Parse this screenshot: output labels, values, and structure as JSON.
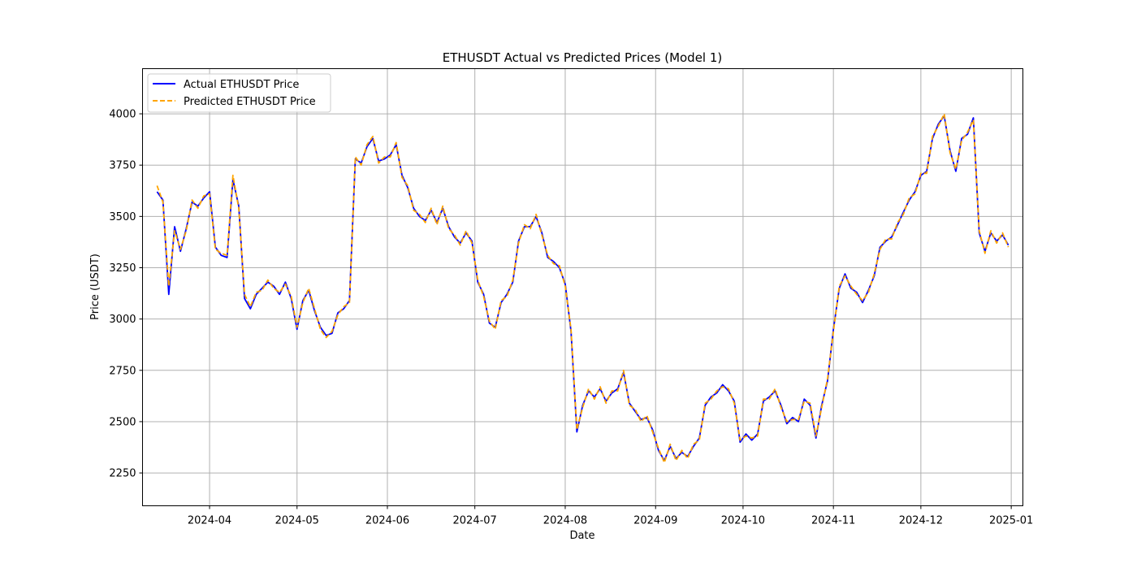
{
  "chart_data": {
    "type": "line",
    "title": "ETHUSDT Actual vs Predicted Prices (Model 1)",
    "xlabel": "Date",
    "ylabel": "Price (USDT)",
    "grid": true,
    "legend_position": "top-left",
    "xlim": [
      "2024-03-09",
      "2025-01-05"
    ],
    "ylim": [
      2090,
      4220
    ],
    "x_ticks": [
      "2024-04-01",
      "2024-05-01",
      "2024-06-01",
      "2024-07-01",
      "2024-08-01",
      "2024-09-01",
      "2024-10-01",
      "2024-11-01",
      "2024-12-01",
      "2025-01-01"
    ],
    "x_tick_labels": [
      "2024-04",
      "2024-05",
      "2024-06",
      "2024-07",
      "2024-08",
      "2024-09",
      "2024-10",
      "2024-11",
      "2024-12",
      "2025-01"
    ],
    "y_ticks": [
      2250,
      2500,
      2750,
      3000,
      3250,
      3500,
      3750,
      4000
    ],
    "y_tick_labels": [
      "2250",
      "2500",
      "2750",
      "3000",
      "3250",
      "3500",
      "3750",
      "4000"
    ],
    "series": [
      {
        "name": "Actual ETHUSDT Price",
        "color": "#0000ff",
        "style": "solid",
        "x": [
          "2024-03-14",
          "2024-03-16",
          "2024-03-18",
          "2024-03-20",
          "2024-03-22",
          "2024-03-24",
          "2024-03-26",
          "2024-03-28",
          "2024-03-30",
          "2024-04-01",
          "2024-04-03",
          "2024-04-05",
          "2024-04-07",
          "2024-04-09",
          "2024-04-11",
          "2024-04-13",
          "2024-04-15",
          "2024-04-17",
          "2024-04-19",
          "2024-04-21",
          "2024-04-23",
          "2024-04-25",
          "2024-04-27",
          "2024-04-29",
          "2024-05-01",
          "2024-05-03",
          "2024-05-05",
          "2024-05-07",
          "2024-05-09",
          "2024-05-11",
          "2024-05-13",
          "2024-05-15",
          "2024-05-17",
          "2024-05-19",
          "2024-05-21",
          "2024-05-23",
          "2024-05-25",
          "2024-05-27",
          "2024-05-29",
          "2024-05-31",
          "2024-06-02",
          "2024-06-04",
          "2024-06-06",
          "2024-06-08",
          "2024-06-10",
          "2024-06-12",
          "2024-06-14",
          "2024-06-16",
          "2024-06-18",
          "2024-06-20",
          "2024-06-22",
          "2024-06-24",
          "2024-06-26",
          "2024-06-28",
          "2024-06-30",
          "2024-07-02",
          "2024-07-04",
          "2024-07-06",
          "2024-07-08",
          "2024-07-10",
          "2024-07-12",
          "2024-07-14",
          "2024-07-16",
          "2024-07-18",
          "2024-07-20",
          "2024-07-22",
          "2024-07-24",
          "2024-07-26",
          "2024-07-28",
          "2024-07-30",
          "2024-08-01",
          "2024-08-03",
          "2024-08-05",
          "2024-08-07",
          "2024-08-09",
          "2024-08-11",
          "2024-08-13",
          "2024-08-15",
          "2024-08-17",
          "2024-08-19",
          "2024-08-21",
          "2024-08-23",
          "2024-08-25",
          "2024-08-27",
          "2024-08-29",
          "2024-08-31",
          "2024-09-02",
          "2024-09-04",
          "2024-09-06",
          "2024-09-08",
          "2024-09-10",
          "2024-09-12",
          "2024-09-14",
          "2024-09-16",
          "2024-09-18",
          "2024-09-20",
          "2024-09-22",
          "2024-09-24",
          "2024-09-26",
          "2024-09-28",
          "2024-09-30",
          "2024-10-02",
          "2024-10-04",
          "2024-10-06",
          "2024-10-08",
          "2024-10-10",
          "2024-10-12",
          "2024-10-14",
          "2024-10-16",
          "2024-10-18",
          "2024-10-20",
          "2024-10-22",
          "2024-10-24",
          "2024-10-26",
          "2024-10-28",
          "2024-10-30",
          "2024-11-01",
          "2024-11-03",
          "2024-11-05",
          "2024-11-07",
          "2024-11-09",
          "2024-11-11",
          "2024-11-13",
          "2024-11-15",
          "2024-11-17",
          "2024-11-19",
          "2024-11-21",
          "2024-11-23",
          "2024-11-25",
          "2024-11-27",
          "2024-11-29",
          "2024-12-01",
          "2024-12-03",
          "2024-12-05",
          "2024-12-07",
          "2024-12-09",
          "2024-12-11",
          "2024-12-13",
          "2024-12-15",
          "2024-12-17",
          "2024-12-19",
          "2024-12-21",
          "2024-12-23",
          "2024-12-25",
          "2024-12-27",
          "2024-12-29",
          "2024-12-31"
        ],
        "y": [
          3620,
          3580,
          3120,
          3450,
          3330,
          3440,
          3570,
          3550,
          3590,
          3620,
          3350,
          3310,
          3300,
          3680,
          3550,
          3100,
          3050,
          3120,
          3150,
          3180,
          3160,
          3120,
          3180,
          3100,
          2950,
          3090,
          3140,
          3040,
          2960,
          2920,
          2930,
          3030,
          3050,
          3090,
          3780,
          3760,
          3840,
          3880,
          3770,
          3780,
          3800,
          3850,
          3700,
          3640,
          3540,
          3500,
          3480,
          3530,
          3470,
          3540,
          3450,
          3400,
          3370,
          3420,
          3380,
          3180,
          3120,
          2980,
          2960,
          3080,
          3120,
          3180,
          3380,
          3450,
          3450,
          3500,
          3420,
          3300,
          3280,
          3250,
          3170,
          2940,
          2450,
          2580,
          2650,
          2620,
          2660,
          2600,
          2640,
          2660,
          2740,
          2590,
          2550,
          2510,
          2520,
          2460,
          2360,
          2310,
          2380,
          2320,
          2350,
          2330,
          2380,
          2420,
          2580,
          2620,
          2640,
          2680,
          2650,
          2600,
          2400,
          2440,
          2410,
          2440,
          2600,
          2620,
          2650,
          2580,
          2490,
          2520,
          2500,
          2610,
          2580,
          2420,
          2580,
          2700,
          2950,
          3150,
          3220,
          3150,
          3130,
          3080,
          3140,
          3210,
          3350,
          3380,
          3400,
          3460,
          3520,
          3580,
          3620,
          3700,
          3720,
          3880,
          3950,
          3990,
          3820,
          3720,
          3880,
          3900,
          3980,
          3420,
          3330,
          3420,
          3380,
          3410,
          3360
        ]
      },
      {
        "name": "Predicted ETHUSDT Price",
        "color": "#ffa500",
        "style": "dashed",
        "x": [
          "2024-03-14",
          "2024-03-16",
          "2024-03-18",
          "2024-03-20",
          "2024-03-22",
          "2024-03-24",
          "2024-03-26",
          "2024-03-28",
          "2024-03-30",
          "2024-04-01",
          "2024-04-03",
          "2024-04-05",
          "2024-04-07",
          "2024-04-09",
          "2024-04-11",
          "2024-04-13",
          "2024-04-15",
          "2024-04-17",
          "2024-04-19",
          "2024-04-21",
          "2024-04-23",
          "2024-04-25",
          "2024-04-27",
          "2024-04-29",
          "2024-05-01",
          "2024-05-03",
          "2024-05-05",
          "2024-05-07",
          "2024-05-09",
          "2024-05-11",
          "2024-05-13",
          "2024-05-15",
          "2024-05-17",
          "2024-05-19",
          "2024-05-21",
          "2024-05-23",
          "2024-05-25",
          "2024-05-27",
          "2024-05-29",
          "2024-05-31",
          "2024-06-02",
          "2024-06-04",
          "2024-06-06",
          "2024-06-08",
          "2024-06-10",
          "2024-06-12",
          "2024-06-14",
          "2024-06-16",
          "2024-06-18",
          "2024-06-20",
          "2024-06-22",
          "2024-06-24",
          "2024-06-26",
          "2024-06-28",
          "2024-06-30",
          "2024-07-02",
          "2024-07-04",
          "2024-07-06",
          "2024-07-08",
          "2024-07-10",
          "2024-07-12",
          "2024-07-14",
          "2024-07-16",
          "2024-07-18",
          "2024-07-20",
          "2024-07-22",
          "2024-07-24",
          "2024-07-26",
          "2024-07-28",
          "2024-07-30",
          "2024-08-01",
          "2024-08-03",
          "2024-08-05",
          "2024-08-07",
          "2024-08-09",
          "2024-08-11",
          "2024-08-13",
          "2024-08-15",
          "2024-08-17",
          "2024-08-19",
          "2024-08-21",
          "2024-08-23",
          "2024-08-25",
          "2024-08-27",
          "2024-08-29",
          "2024-08-31",
          "2024-09-02",
          "2024-09-04",
          "2024-09-06",
          "2024-09-08",
          "2024-09-10",
          "2024-09-12",
          "2024-09-14",
          "2024-09-16",
          "2024-09-18",
          "2024-09-20",
          "2024-09-22",
          "2024-09-24",
          "2024-09-26",
          "2024-09-28",
          "2024-09-30",
          "2024-10-02",
          "2024-10-04",
          "2024-10-06",
          "2024-10-08",
          "2024-10-10",
          "2024-10-12",
          "2024-10-14",
          "2024-10-16",
          "2024-10-18",
          "2024-10-20",
          "2024-10-22",
          "2024-10-24",
          "2024-10-26",
          "2024-10-28",
          "2024-10-30",
          "2024-11-01",
          "2024-11-03",
          "2024-11-05",
          "2024-11-07",
          "2024-11-09",
          "2024-11-11",
          "2024-11-13",
          "2024-11-15",
          "2024-11-17",
          "2024-11-19",
          "2024-11-21",
          "2024-11-23",
          "2024-11-25",
          "2024-11-27",
          "2024-11-29",
          "2024-12-01",
          "2024-12-03",
          "2024-12-05",
          "2024-12-07",
          "2024-12-09",
          "2024-12-11",
          "2024-12-13",
          "2024-12-15",
          "2024-12-17",
          "2024-12-19",
          "2024-12-21",
          "2024-12-23",
          "2024-12-25",
          "2024-12-27",
          "2024-12-29",
          "2024-12-31"
        ],
        "y": [
          3650,
          3570,
          3160,
          3430,
          3340,
          3430,
          3580,
          3540,
          3600,
          3610,
          3340,
          3320,
          3310,
          3700,
          3540,
          3120,
          3060,
          3130,
          3140,
          3190,
          3150,
          3130,
          3170,
          3110,
          2960,
          3080,
          3150,
          3050,
          2950,
          2910,
          2940,
          3020,
          3060,
          3080,
          3790,
          3750,
          3850,
          3890,
          3760,
          3790,
          3790,
          3860,
          3690,
          3650,
          3530,
          3510,
          3470,
          3540,
          3460,
          3550,
          3440,
          3410,
          3360,
          3430,
          3370,
          3190,
          3110,
          2990,
          2950,
          3090,
          3110,
          3190,
          3370,
          3460,
          3440,
          3510,
          3410,
          3310,
          3270,
          3260,
          3160,
          2950,
          2460,
          2570,
          2660,
          2610,
          2670,
          2590,
          2650,
          2650,
          2750,
          2580,
          2560,
          2500,
          2530,
          2450,
          2370,
          2300,
          2390,
          2310,
          2360,
          2320,
          2390,
          2410,
          2590,
          2610,
          2650,
          2670,
          2660,
          2590,
          2410,
          2430,
          2420,
          2430,
          2610,
          2610,
          2660,
          2570,
          2500,
          2510,
          2510,
          2600,
          2590,
          2430,
          2570,
          2710,
          2940,
          3160,
          3210,
          3160,
          3120,
          3090,
          3130,
          3220,
          3340,
          3390,
          3390,
          3470,
          3510,
          3590,
          3610,
          3710,
          3710,
          3890,
          3940,
          4000,
          3810,
          3730,
          3870,
          3910,
          3970,
          3430,
          3320,
          3430,
          3370,
          3420,
          3350
        ]
      }
    ]
  }
}
